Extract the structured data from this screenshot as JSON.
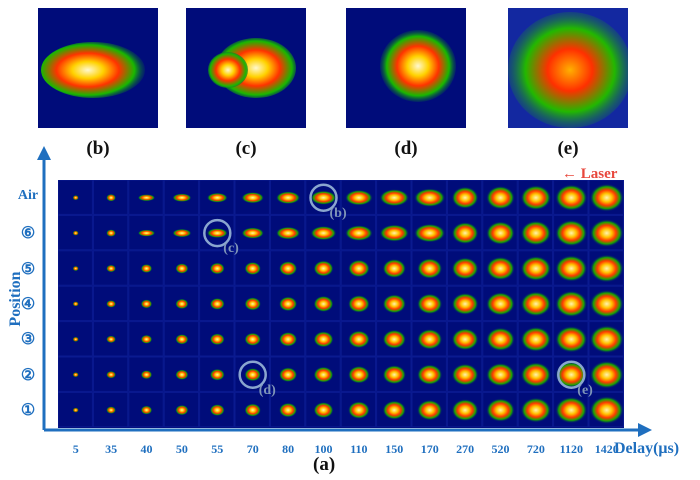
{
  "top_images": [
    {
      "label": "(b)",
      "name": "elongated"
    },
    {
      "label": "(c)",
      "name": "split"
    },
    {
      "label": "(d)",
      "name": "compact"
    },
    {
      "label": "(e)",
      "name": "diffuse"
    }
  ],
  "laser_label": "← Laser",
  "y_axis_title": "Position",
  "x_axis_title": "Delay(μs)",
  "panel_label": "(a)",
  "rows": [
    "Air",
    "⑥",
    "⑤",
    "④",
    "③",
    "②",
    "①"
  ],
  "delays": [
    "5",
    "35",
    "40",
    "50",
    "55",
    "70",
    "80",
    "100",
    "110",
    "150",
    "170",
    "270",
    "520",
    "720",
    "1120",
    "1420"
  ],
  "callouts": [
    {
      "label": "(b)",
      "row": 0,
      "col": 7
    },
    {
      "label": "(c)",
      "row": 1,
      "col": 4
    },
    {
      "label": "(d)",
      "row": 5,
      "col": 5
    },
    {
      "label": "(e)",
      "row": 5,
      "col": 14
    }
  ],
  "colors": {
    "axis": "#1f6fbf",
    "laser": "#e8473c",
    "circle": "#8aa6cf",
    "background": "#000c7a"
  }
}
